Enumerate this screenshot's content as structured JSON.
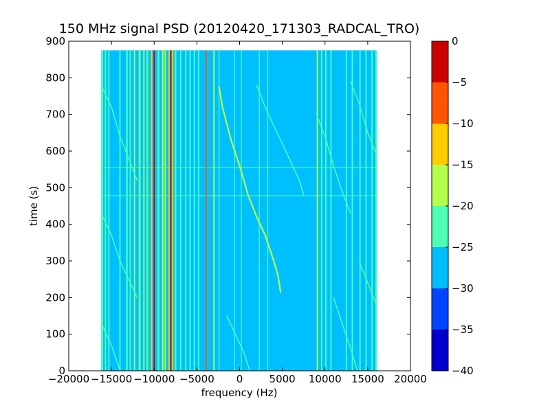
{
  "chart_data": {
    "type": "heatmap",
    "title": "150 MHz signal PSD (20120420_171303_RADCAL_TRO)",
    "xlabel": "frequency (Hz)",
    "ylabel": "time (s)",
    "xlim": [
      -20000,
      20000
    ],
    "ylim": [
      0,
      900
    ],
    "xticks": [
      -20000,
      -15000,
      -10000,
      -5000,
      0,
      5000,
      10000,
      15000,
      20000
    ],
    "xtick_labels": [
      "−20000",
      "−15000",
      "−10000",
      "−5000",
      "0",
      "5000",
      "10000",
      "15000",
      "20000"
    ],
    "yticks": [
      0,
      100,
      200,
      300,
      400,
      500,
      600,
      700,
      800,
      900
    ],
    "ytick_labels": [
      "0",
      "100",
      "200",
      "300",
      "400",
      "500",
      "600",
      "700",
      "800",
      "900"
    ],
    "data_extent": {
      "x": [
        -16000,
        16000
      ],
      "t": [
        0,
        875
      ]
    },
    "background_level": -27.5,
    "colorbar": {
      "levels": [
        -40,
        -35,
        -30,
        -25,
        -20,
        -15,
        -10,
        -5,
        0
      ],
      "tick_labels": [
        "−40",
        "−35",
        "−30",
        "−25",
        "−20",
        "−15",
        "−10",
        "−5",
        "0"
      ],
      "colors": [
        "#0000cc",
        "#0044ff",
        "#00bfff",
        "#4cffb2",
        "#b2ff4c",
        "#ffcc00",
        "#ff5500",
        "#cc0000"
      ]
    },
    "vertical_lines": [
      {
        "f": -16100,
        "level": -22,
        "width_hz": 250
      },
      {
        "f": -15700,
        "level": -22,
        "width_hz": 150
      },
      {
        "f": -15300,
        "level": -22,
        "width_hz": 150
      },
      {
        "f": -14000,
        "level": -22,
        "width_hz": 150
      },
      {
        "f": -13200,
        "level": -22,
        "width_hz": 200
      },
      {
        "f": -12800,
        "level": -22,
        "width_hz": 150
      },
      {
        "f": -12300,
        "level": -17,
        "width_hz": 150
      },
      {
        "f": -11700,
        "level": -22,
        "width_hz": 250
      },
      {
        "f": -11200,
        "level": -17,
        "width_hz": 150
      },
      {
        "f": -10800,
        "level": -22,
        "width_hz": 200
      },
      {
        "f": -10300,
        "level": -12,
        "width_hz": 150
      },
      {
        "f": -10000,
        "level": -3,
        "width_hz": 150
      },
      {
        "f": -9500,
        "level": -22,
        "width_hz": 200
      },
      {
        "f": -9000,
        "level": -17,
        "width_hz": 200
      },
      {
        "f": -8700,
        "level": -17,
        "width_hz": 150
      },
      {
        "f": -8250,
        "level": -12,
        "width_hz": 150
      },
      {
        "f": -8050,
        "level": -3,
        "width_hz": 150
      },
      {
        "f": -7850,
        "level": -12,
        "width_hz": 150
      },
      {
        "f": -7500,
        "level": -22,
        "width_hz": 200
      },
      {
        "f": -6900,
        "level": -22,
        "width_hz": 150
      },
      {
        "f": -6300,
        "level": -22,
        "width_hz": 150
      },
      {
        "f": -5800,
        "level": -22,
        "width_hz": 150
      },
      {
        "f": -5300,
        "level": -22,
        "width_hz": 150
      },
      {
        "f": -4800,
        "level": -22,
        "width_hz": 150
      },
      {
        "f": -3900,
        "level": -7,
        "width_hz": 150
      },
      {
        "f": -3000,
        "level": -17,
        "width_hz": 150
      },
      {
        "f": -2400,
        "level": -22,
        "width_hz": 100
      },
      {
        "f": -600,
        "level": -22,
        "width_hz": 100
      },
      {
        "f": 200,
        "level": -22,
        "width_hz": 100
      },
      {
        "f": 2300,
        "level": -22,
        "width_hz": 100
      },
      {
        "f": 3300,
        "level": -22,
        "width_hz": 100
      },
      {
        "f": 9100,
        "level": -17,
        "width_hz": 150
      },
      {
        "f": 9600,
        "level": -22,
        "width_hz": 150
      },
      {
        "f": 10100,
        "level": -22,
        "width_hz": 150
      },
      {
        "f": 10700,
        "level": -22,
        "width_hz": 150
      },
      {
        "f": 12500,
        "level": -22,
        "width_hz": 150
      },
      {
        "f": 13200,
        "level": -22,
        "width_hz": 150
      },
      {
        "f": 14100,
        "level": -22,
        "width_hz": 150
      },
      {
        "f": 14800,
        "level": -22,
        "width_hz": 150
      },
      {
        "f": 15500,
        "level": -22,
        "width_hz": 150
      },
      {
        "f": 16000,
        "level": -22,
        "width_hz": 200
      }
    ],
    "drift_tracks": [
      {
        "level": -17,
        "width_hz": 180,
        "points": [
          [
            -2400,
            775
          ],
          [
            -2000,
            720
          ],
          [
            -1000,
            630
          ],
          [
            0,
            560
          ],
          [
            1000,
            480
          ],
          [
            2000,
            420
          ],
          [
            3000,
            370
          ],
          [
            4000,
            300
          ],
          [
            4500,
            260
          ],
          [
            4800,
            215
          ]
        ]
      },
      {
        "level": -22,
        "width_hz": 120,
        "points": [
          [
            2000,
            780
          ],
          [
            3000,
            720
          ],
          [
            4000,
            670
          ],
          [
            5000,
            620
          ],
          [
            6000,
            570
          ],
          [
            7000,
            520
          ],
          [
            7500,
            480
          ]
        ]
      },
      {
        "level": -22,
        "width_hz": 120,
        "points": [
          [
            -16000,
            770
          ],
          [
            -15000,
            720
          ],
          [
            -14000,
            640
          ],
          [
            -13000,
            580
          ],
          [
            -12000,
            520
          ]
        ]
      },
      {
        "level": -22,
        "width_hz": 120,
        "points": [
          [
            -16000,
            420
          ],
          [
            -15000,
            370
          ],
          [
            -14000,
            300
          ],
          [
            -13000,
            250
          ],
          [
            -12000,
            200
          ]
        ]
      },
      {
        "level": -22,
        "width_hz": 120,
        "points": [
          [
            -16000,
            120
          ],
          [
            -15000,
            70
          ],
          [
            -14000,
            0
          ]
        ]
      },
      {
        "level": -22,
        "width_hz": 120,
        "points": [
          [
            9000,
            700
          ],
          [
            10000,
            640
          ],
          [
            11000,
            560
          ],
          [
            12000,
            490
          ],
          [
            13000,
            430
          ]
        ]
      },
      {
        "level": -22,
        "width_hz": 120,
        "points": [
          [
            11000,
            200
          ],
          [
            12000,
            130
          ],
          [
            13000,
            60
          ],
          [
            13800,
            0
          ]
        ]
      },
      {
        "level": -22,
        "width_hz": 120,
        "points": [
          [
            13000,
            790
          ],
          [
            14000,
            730
          ],
          [
            15000,
            650
          ],
          [
            16000,
            590
          ]
        ]
      },
      {
        "level": -22,
        "width_hz": 120,
        "points": [
          [
            14000,
            300
          ],
          [
            15000,
            240
          ],
          [
            16000,
            180
          ]
        ]
      },
      {
        "level": -22,
        "width_hz": 120,
        "points": [
          [
            -1500,
            150
          ],
          [
            -500,
            100
          ],
          [
            500,
            50
          ],
          [
            1200,
            0
          ]
        ]
      }
    ],
    "horizontal_bands": [
      {
        "t": 478,
        "level": -22,
        "f_range": [
          -16000,
          16000
        ]
      },
      {
        "t": 555,
        "level": -22,
        "f_range": [
          -16000,
          16000
        ]
      }
    ]
  }
}
